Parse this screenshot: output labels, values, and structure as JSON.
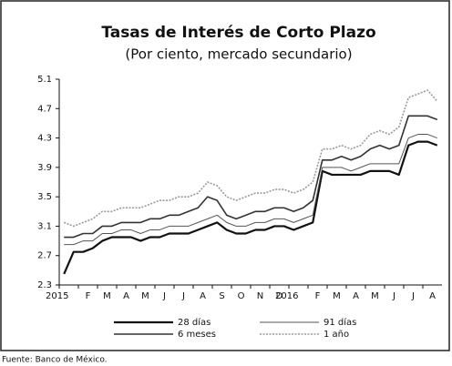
{
  "chart_data": {
    "type": "line",
    "title": "Tasas de Interés de Corto Plazo",
    "subtitle": "(Por ciento, mercado secundario)",
    "source": "Fuente: Banco de México.",
    "categories": [
      "2015",
      null,
      "F",
      null,
      "M",
      null,
      "A",
      null,
      "M",
      null,
      "J",
      null,
      "J",
      null,
      "A",
      null,
      "S",
      null,
      "O",
      null,
      "N",
      null,
      "D",
      null,
      "2016",
      null,
      "F",
      null,
      "M",
      null,
      "A",
      null,
      "M",
      null,
      "J",
      null,
      "J",
      null,
      "A",
      null
    ],
    "ylim": [
      2.3,
      5.1
    ],
    "yticks": [
      2.3,
      2.7,
      3.1,
      3.5,
      3.9,
      4.3,
      4.7,
      5.1
    ],
    "series": [
      {
        "name": "28 días",
        "color": "#111111",
        "values": [
          2.45,
          2.75,
          2.75,
          2.8,
          2.9,
          2.95,
          2.95,
          2.95,
          2.9,
          2.95,
          2.95,
          3.0,
          3.0,
          3.0,
          3.05,
          3.1,
          3.15,
          3.05,
          3.0,
          3.0,
          3.05,
          3.05,
          3.1,
          3.1,
          3.05,
          3.1,
          3.15,
          3.85,
          3.8,
          3.8,
          3.8,
          3.8,
          3.85,
          3.85,
          3.85,
          3.8,
          4.2,
          4.25,
          4.25,
          4.2
        ]
      },
      {
        "name": "91 días",
        "color": "#555555",
        "values": [
          2.85,
          2.85,
          2.9,
          2.9,
          3.0,
          3.0,
          3.05,
          3.05,
          3.0,
          3.05,
          3.05,
          3.1,
          3.1,
          3.1,
          3.15,
          3.2,
          3.25,
          3.15,
          3.1,
          3.1,
          3.15,
          3.15,
          3.2,
          3.2,
          3.15,
          3.2,
          3.25,
          3.9,
          3.9,
          3.9,
          3.85,
          3.9,
          3.95,
          3.95,
          3.95,
          3.95,
          4.3,
          4.35,
          4.35,
          4.3
        ]
      },
      {
        "name": "6 meses",
        "color": "#333333",
        "values": [
          2.95,
          2.95,
          3.0,
          3.0,
          3.1,
          3.1,
          3.15,
          3.15,
          3.15,
          3.2,
          3.2,
          3.25,
          3.25,
          3.3,
          3.35,
          3.5,
          3.45,
          3.25,
          3.2,
          3.25,
          3.3,
          3.3,
          3.35,
          3.35,
          3.3,
          3.35,
          3.45,
          4.0,
          4.0,
          4.05,
          4.0,
          4.05,
          4.15,
          4.2,
          4.15,
          4.2,
          4.6,
          4.6,
          4.6,
          4.55
        ]
      },
      {
        "name": "1 año",
        "color": "#999999",
        "values": [
          3.15,
          3.1,
          3.15,
          3.2,
          3.3,
          3.3,
          3.35,
          3.35,
          3.35,
          3.4,
          3.45,
          3.45,
          3.5,
          3.5,
          3.55,
          3.7,
          3.65,
          3.5,
          3.45,
          3.5,
          3.55,
          3.55,
          3.6,
          3.6,
          3.55,
          3.6,
          3.7,
          4.15,
          4.15,
          4.2,
          4.15,
          4.2,
          4.35,
          4.4,
          4.35,
          4.45,
          4.85,
          4.9,
          4.95,
          4.8
        ]
      }
    ]
  }
}
